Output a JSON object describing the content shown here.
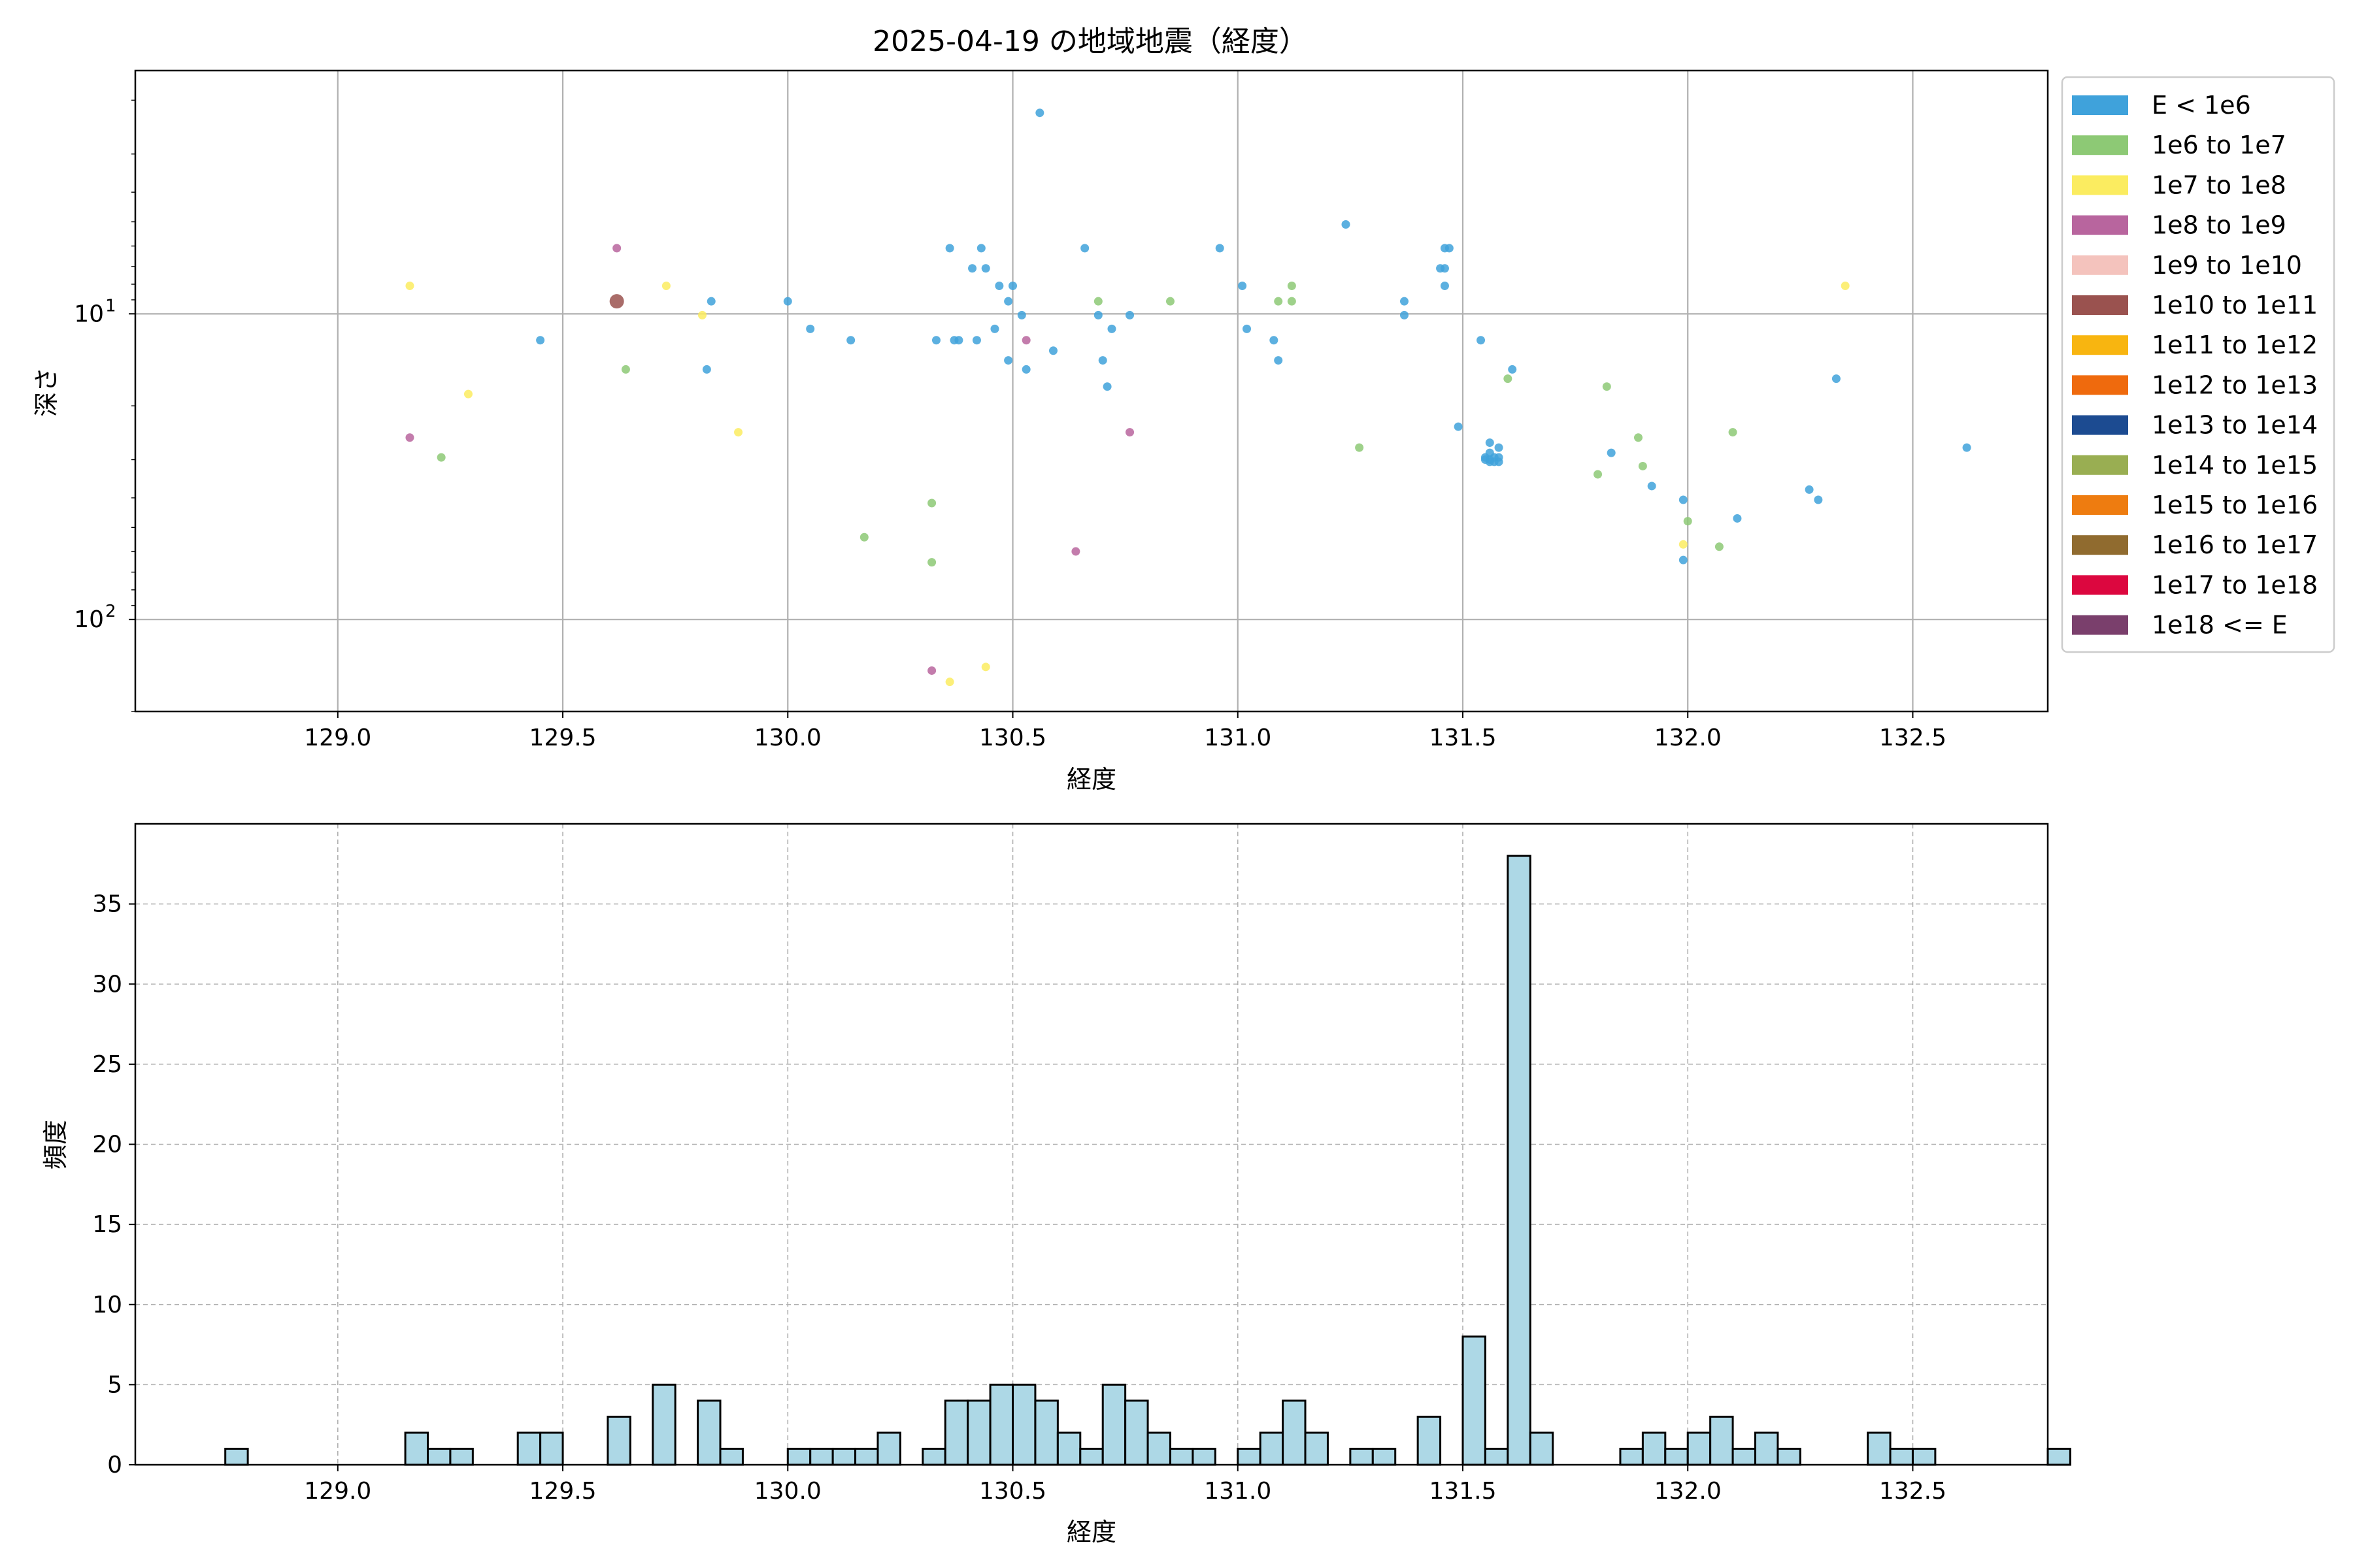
{
  "colors": {
    "hist_fill": "#add8e6",
    "grid": "#b0b0b0"
  },
  "chart_data": [
    {
      "type": "scatter",
      "title": "2025-04-19 の地域地震（経度）",
      "xlabel": "経度",
      "ylabel": "深さ",
      "xlim": [
        128.55,
        132.8
      ],
      "ylim": [
        200,
        1.6
      ],
      "yscale": "log",
      "y_inverted": true,
      "xticks": [
        "129.0",
        "129.5",
        "130.0",
        "130.5",
        "131.0",
        "131.5",
        "132.0",
        "132.5"
      ],
      "yticks": [
        {
          "value": 10,
          "label": "10",
          "sup": "1"
        },
        {
          "value": 100,
          "label": "10",
          "sup": "2"
        }
      ],
      "grid": true,
      "legend_position": "outside-right",
      "legend": [
        {
          "label": "E < 1e6",
          "color": "#3fa2db"
        },
        {
          "label": "1e6 to 1e7",
          "color": "#8dc975"
        },
        {
          "label": "1e7 to 1e8",
          "color": "#fbec60"
        },
        {
          "label": "1e8 to 1e9",
          "color": "#b8659e"
        },
        {
          "label": "1e9 to 1e10",
          "color": "#f4c3bd"
        },
        {
          "label": "1e10 to 1e11",
          "color": "#9a524f"
        },
        {
          "label": "1e11 to 1e12",
          "color": "#f8b510"
        },
        {
          "label": "1e12 to 1e13",
          "color": "#ef6a0d"
        },
        {
          "label": "1e13 to 1e14",
          "color": "#1c4b91"
        },
        {
          "label": "1e14 to 1e15",
          "color": "#99ae52"
        },
        {
          "label": "1e15 to 1e16",
          "color": "#ee7c10"
        },
        {
          "label": "1e16 to 1e17",
          "color": "#906b2f"
        },
        {
          "label": "1e17 to 1e18",
          "color": "#dc073f"
        },
        {
          "label": "1e18 <= E",
          "color": "#7a3f6c"
        }
      ],
      "points": [
        {
          "x": 130.56,
          "y": 2.2,
          "c": 0
        },
        {
          "x": 131.24,
          "y": 5.1,
          "c": 0
        },
        {
          "x": 130.36,
          "y": 6.1,
          "c": 0
        },
        {
          "x": 130.43,
          "y": 6.1,
          "c": 0
        },
        {
          "x": 130.66,
          "y": 6.1,
          "c": 0
        },
        {
          "x": 130.96,
          "y": 6.1,
          "c": 0
        },
        {
          "x": 131.46,
          "y": 6.1,
          "c": 0
        },
        {
          "x": 131.47,
          "y": 6.1,
          "c": 0
        },
        {
          "x": 130.41,
          "y": 7.1,
          "c": 0
        },
        {
          "x": 130.44,
          "y": 7.1,
          "c": 0
        },
        {
          "x": 131.45,
          "y": 7.1,
          "c": 0
        },
        {
          "x": 131.46,
          "y": 7.1,
          "c": 0
        },
        {
          "x": 130.47,
          "y": 8.1,
          "c": 0
        },
        {
          "x": 130.5,
          "y": 8.1,
          "c": 0
        },
        {
          "x": 131.01,
          "y": 8.1,
          "c": 0
        },
        {
          "x": 131.46,
          "y": 8.1,
          "c": 0
        },
        {
          "x": 129.83,
          "y": 9.1,
          "c": 0
        },
        {
          "x": 130.0,
          "y": 9.1,
          "c": 0
        },
        {
          "x": 130.49,
          "y": 9.1,
          "c": 0
        },
        {
          "x": 131.37,
          "y": 9.1,
          "c": 0
        },
        {
          "x": 130.52,
          "y": 10.1,
          "c": 0
        },
        {
          "x": 130.69,
          "y": 10.1,
          "c": 0
        },
        {
          "x": 130.76,
          "y": 10.1,
          "c": 0
        },
        {
          "x": 131.37,
          "y": 10.1,
          "c": 0
        },
        {
          "x": 130.05,
          "y": 11.2,
          "c": 0
        },
        {
          "x": 130.46,
          "y": 11.2,
          "c": 0
        },
        {
          "x": 130.72,
          "y": 11.2,
          "c": 0
        },
        {
          "x": 131.02,
          "y": 11.2,
          "c": 0
        },
        {
          "x": 129.45,
          "y": 12.2,
          "c": 0
        },
        {
          "x": 130.14,
          "y": 12.2,
          "c": 0
        },
        {
          "x": 130.33,
          "y": 12.2,
          "c": 0
        },
        {
          "x": 130.37,
          "y": 12.2,
          "c": 0
        },
        {
          "x": 130.38,
          "y": 12.2,
          "c": 0
        },
        {
          "x": 130.42,
          "y": 12.2,
          "c": 0
        },
        {
          "x": 131.08,
          "y": 12.2,
          "c": 0
        },
        {
          "x": 131.54,
          "y": 12.2,
          "c": 0
        },
        {
          "x": 130.59,
          "y": 13.2,
          "c": 0
        },
        {
          "x": 130.49,
          "y": 14.2,
          "c": 0
        },
        {
          "x": 130.7,
          "y": 14.2,
          "c": 0
        },
        {
          "x": 131.09,
          "y": 14.2,
          "c": 0
        },
        {
          "x": 129.82,
          "y": 15.2,
          "c": 0
        },
        {
          "x": 130.53,
          "y": 15.2,
          "c": 0
        },
        {
          "x": 131.61,
          "y": 15.2,
          "c": 0
        },
        {
          "x": 130.71,
          "y": 17.3,
          "c": 0
        },
        {
          "x": 132.33,
          "y": 16.3,
          "c": 0
        },
        {
          "x": 131.49,
          "y": 23.4,
          "c": 0
        },
        {
          "x": 132.62,
          "y": 27.4,
          "c": 0
        },
        {
          "x": 131.56,
          "y": 26.4,
          "c": 0
        },
        {
          "x": 131.58,
          "y": 27.4,
          "c": 0
        },
        {
          "x": 131.56,
          "y": 28.5,
          "c": 0
        },
        {
          "x": 131.57,
          "y": 29.5,
          "c": 0
        },
        {
          "x": 131.55,
          "y": 29.5,
          "c": 0
        },
        {
          "x": 131.57,
          "y": 30.5,
          "c": 0
        },
        {
          "x": 131.56,
          "y": 30.5,
          "c": 0
        },
        {
          "x": 131.58,
          "y": 29.5,
          "c": 0
        },
        {
          "x": 131.56,
          "y": 30.0,
          "c": 0
        },
        {
          "x": 131.55,
          "y": 30.0,
          "c": 0
        },
        {
          "x": 131.58,
          "y": 30.5,
          "c": 0
        },
        {
          "x": 131.83,
          "y": 28.5,
          "c": 0
        },
        {
          "x": 131.92,
          "y": 36.6,
          "c": 0
        },
        {
          "x": 131.99,
          "y": 40.6,
          "c": 0
        },
        {
          "x": 132.11,
          "y": 46.7,
          "c": 0
        },
        {
          "x": 132.27,
          "y": 37.6,
          "c": 0
        },
        {
          "x": 132.29,
          "y": 40.6,
          "c": 0
        },
        {
          "x": 131.99,
          "y": 63.9,
          "c": 0
        },
        {
          "x": 130.69,
          "y": 9.1,
          "c": 1
        },
        {
          "x": 130.85,
          "y": 9.1,
          "c": 1
        },
        {
          "x": 131.09,
          "y": 9.1,
          "c": 1
        },
        {
          "x": 131.12,
          "y": 9.1,
          "c": 1
        },
        {
          "x": 131.12,
          "y": 8.1,
          "c": 1
        },
        {
          "x": 129.64,
          "y": 15.2,
          "c": 1
        },
        {
          "x": 131.6,
          "y": 16.3,
          "c": 1
        },
        {
          "x": 131.82,
          "y": 17.3,
          "c": 1
        },
        {
          "x": 131.27,
          "y": 27.4,
          "c": 1
        },
        {
          "x": 129.23,
          "y": 29.5,
          "c": 1
        },
        {
          "x": 131.89,
          "y": 25.4,
          "c": 1
        },
        {
          "x": 132.1,
          "y": 24.4,
          "c": 1
        },
        {
          "x": 131.9,
          "y": 31.5,
          "c": 1
        },
        {
          "x": 131.8,
          "y": 33.5,
          "c": 1
        },
        {
          "x": 130.32,
          "y": 41.6,
          "c": 1
        },
        {
          "x": 132.0,
          "y": 47.7,
          "c": 1
        },
        {
          "x": 130.17,
          "y": 53.8,
          "c": 1
        },
        {
          "x": 132.07,
          "y": 57.8,
          "c": 1
        },
        {
          "x": 130.32,
          "y": 65.0,
          "c": 1
        },
        {
          "x": 129.16,
          "y": 8.1,
          "c": 2
        },
        {
          "x": 129.73,
          "y": 8.1,
          "c": 2
        },
        {
          "x": 129.81,
          "y": 10.1,
          "c": 2
        },
        {
          "x": 132.35,
          "y": 8.1,
          "c": 2
        },
        {
          "x": 129.29,
          "y": 18.3,
          "c": 2
        },
        {
          "x": 129.89,
          "y": 24.4,
          "c": 2
        },
        {
          "x": 131.99,
          "y": 56.8,
          "c": 2
        },
        {
          "x": 130.44,
          "y": 143,
          "c": 2
        },
        {
          "x": 130.36,
          "y": 160,
          "c": 2
        },
        {
          "x": 129.62,
          "y": 6.1,
          "c": 3
        },
        {
          "x": 130.53,
          "y": 12.2,
          "c": 3
        },
        {
          "x": 129.16,
          "y": 25.4,
          "c": 3
        },
        {
          "x": 130.76,
          "y": 24.4,
          "c": 3
        },
        {
          "x": 130.64,
          "y": 59.9,
          "c": 3
        },
        {
          "x": 130.32,
          "y": 147,
          "c": 3
        },
        {
          "x": 129.62,
          "y": 9.1,
          "c": 5
        }
      ]
    },
    {
      "type": "bar",
      "xlabel": "経度",
      "ylabel": "頻度",
      "xlim": [
        128.55,
        132.8
      ],
      "ylim": [
        0,
        40
      ],
      "xticks": [
        "129.0",
        "129.5",
        "130.0",
        "130.5",
        "131.0",
        "131.5",
        "132.0",
        "132.5"
      ],
      "yticks": [
        "0",
        "5",
        "10",
        "15",
        "20",
        "25",
        "30",
        "35"
      ],
      "grid": true,
      "bin_start": 128.75,
      "bin_width": 0.05,
      "values": [
        1,
        0,
        0,
        0,
        0,
        0,
        0,
        0,
        2,
        1,
        1,
        0,
        0,
        2,
        2,
        0,
        0,
        3,
        0,
        5,
        0,
        4,
        1,
        0,
        0,
        1,
        1,
        1,
        1,
        2,
        0,
        1,
        4,
        4,
        5,
        5,
        4,
        2,
        1,
        5,
        4,
        2,
        1,
        1,
        0,
        1,
        2,
        4,
        2,
        0,
        1,
        1,
        0,
        3,
        0,
        8,
        1,
        38,
        2,
        0,
        0,
        0,
        1,
        2,
        1,
        2,
        3,
        1,
        2,
        1,
        0,
        0,
        0,
        2,
        1,
        1,
        0,
        0,
        0,
        0,
        0,
        1
      ]
    }
  ]
}
